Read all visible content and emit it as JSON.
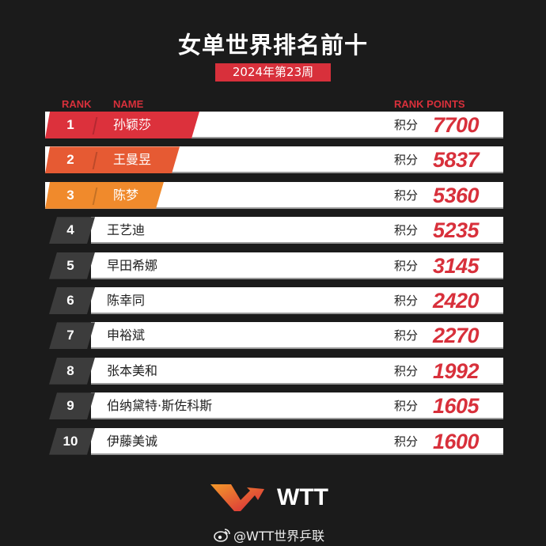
{
  "title": "女单世界排名前十",
  "subtitle": "2024年第23周",
  "headers": {
    "rank": "RANK",
    "name": "NAME",
    "points": "RANK POINTS"
  },
  "colors": {
    "accent": "#d8303b",
    "rank1": "#dc313c",
    "rank2": "#e65a33",
    "rank3": "#f08a2c",
    "rank_other": "#3c3c3c"
  },
  "points_unit": "积分",
  "rankings": [
    {
      "rank": "1",
      "name": "孙颖莎",
      "points": "7700"
    },
    {
      "rank": "2",
      "name": "王曼昱",
      "points": "5837"
    },
    {
      "rank": "3",
      "name": "陈梦",
      "points": "5360"
    },
    {
      "rank": "4",
      "name": "王艺迪",
      "points": "5235"
    },
    {
      "rank": "5",
      "name": "早田希娜",
      "points": "3145"
    },
    {
      "rank": "6",
      "name": "陈幸同",
      "points": "2420"
    },
    {
      "rank": "7",
      "name": "申裕斌",
      "points": "2270"
    },
    {
      "rank": "8",
      "name": "张本美和",
      "points": "1992"
    },
    {
      "rank": "9",
      "name": "伯纳黛特·斯佐科斯",
      "points": "1605"
    },
    {
      "rank": "10",
      "name": "伊藤美诚",
      "points": "1600"
    }
  ],
  "logo": {
    "text": "WTT"
  },
  "footer": {
    "icon": "weibo-icon",
    "handle": "@WTT世界乒联"
  }
}
